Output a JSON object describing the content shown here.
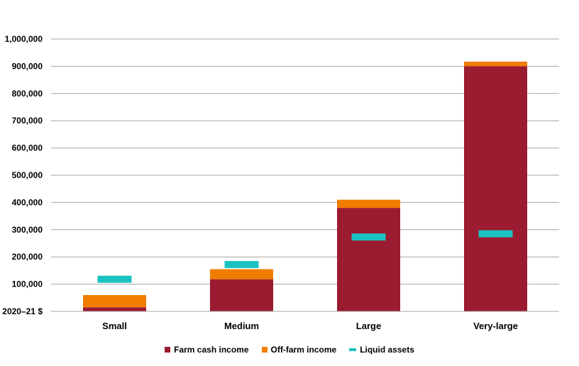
{
  "chart_data": {
    "type": "bar",
    "stacked": true,
    "categories": [
      "Small",
      "Medium",
      "Large",
      "Very-large"
    ],
    "series": [
      {
        "name": "Farm cash income",
        "type": "bar",
        "color": "#9B1B30",
        "values": [
          15000,
          118000,
          380000,
          900000
        ]
      },
      {
        "name": "Off-farm income",
        "type": "bar",
        "color": "#F07D00",
        "values": [
          45000,
          37000,
          30000,
          17000
        ]
      },
      {
        "name": "Liquid assets",
        "type": "marker",
        "color": "#1CC1C1",
        "values": [
          118000,
          172000,
          273000,
          285000
        ]
      }
    ],
    "ylabel": "2020–21 $",
    "ylim": [
      0,
      1000000
    ],
    "yticks": [
      0,
      100000,
      200000,
      300000,
      400000,
      500000,
      600000,
      700000,
      800000,
      900000,
      1000000
    ],
    "ytick_labels": [
      "2020–21 $",
      "100,000",
      "200,000",
      "300,000",
      "400,000",
      "500,000",
      "600,000",
      "700,000",
      "800,000",
      "900,000",
      "1,000,000"
    ],
    "grid": true,
    "legend_position": "bottom"
  }
}
